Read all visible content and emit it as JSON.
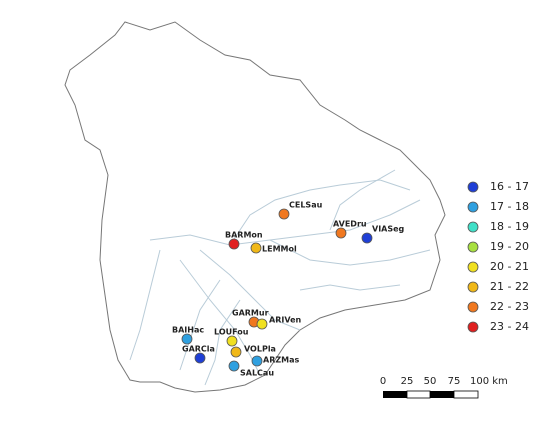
{
  "stations": [
    {
      "label": "CELSau",
      "color": "#f07820"
    },
    {
      "label": "BARMon",
      "color": "#e02020"
    },
    {
      "label": "LEMMol",
      "color": "#f0b818"
    },
    {
      "label": "AVEDru",
      "color": "#f07820"
    },
    {
      "label": "VIASeg",
      "color": "#1f3fd6"
    },
    {
      "label": "GARMur",
      "color": "#f07820"
    },
    {
      "label": "ARIVen",
      "color": "#f0e020"
    },
    {
      "label": "BAIHac",
      "color": "#2fa0e0"
    },
    {
      "label": "LOUFou",
      "color": "#f0e020"
    },
    {
      "label": "VOLPla",
      "color": "#f0b818"
    },
    {
      "label": "GARCla",
      "color": "#1f3fd6"
    },
    {
      "label": "ARZMas",
      "color": "#2fa0e0"
    },
    {
      "label": "SALCau",
      "color": "#2fa0e0"
    }
  ],
  "legend": [
    {
      "label": "16 - 17",
      "color": "#1f3fd6"
    },
    {
      "label": "17 - 18",
      "color": "#2fa0e0"
    },
    {
      "label": "18 - 19",
      "color": "#40e0c8"
    },
    {
      "label": "19 - 20",
      "color": "#a8e040"
    },
    {
      "label": "20 - 21",
      "color": "#f0e020"
    },
    {
      "label": "21 - 22",
      "color": "#f0b818"
    },
    {
      "label": "22 - 23",
      "color": "#f07820"
    },
    {
      "label": "23 - 24",
      "color": "#e02020"
    }
  ],
  "scale_bar": [
    "0",
    "25",
    "50",
    "75",
    "100 km"
  ]
}
